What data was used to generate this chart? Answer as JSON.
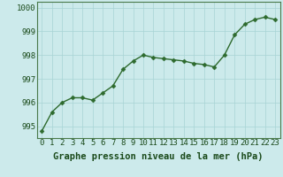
{
  "x": [
    0,
    1,
    2,
    3,
    4,
    5,
    6,
    7,
    8,
    9,
    10,
    11,
    12,
    13,
    14,
    15,
    16,
    17,
    18,
    19,
    20,
    21,
    22,
    23
  ],
  "y": [
    994.8,
    995.6,
    996.0,
    996.2,
    996.2,
    996.1,
    996.4,
    996.7,
    997.4,
    997.75,
    998.0,
    997.9,
    997.85,
    997.8,
    997.75,
    997.65,
    997.6,
    997.5,
    998.0,
    998.85,
    999.3,
    999.5,
    999.6,
    999.5
  ],
  "line_color": "#2d6a2d",
  "marker_color": "#2d6a2d",
  "bg_color": "#cceaeb",
  "grid_color": "#a8d4d5",
  "xlabel": "Graphe pression niveau de la mer (hPa)",
  "ylim": [
    994.5,
    1000.25
  ],
  "yticks": [
    995,
    996,
    997,
    998,
    999,
    1000
  ],
  "xticks": [
    0,
    1,
    2,
    3,
    4,
    5,
    6,
    7,
    8,
    9,
    10,
    11,
    12,
    13,
    14,
    15,
    16,
    17,
    18,
    19,
    20,
    21,
    22,
    23
  ],
  "xlabel_fontsize": 7.5,
  "tick_fontsize": 6.5,
  "xlabel_color": "#1a4a1a",
  "tick_color": "#1a4a1a",
  "line_width": 1.0,
  "marker_size": 2.5,
  "spine_color": "#4a7a4a"
}
